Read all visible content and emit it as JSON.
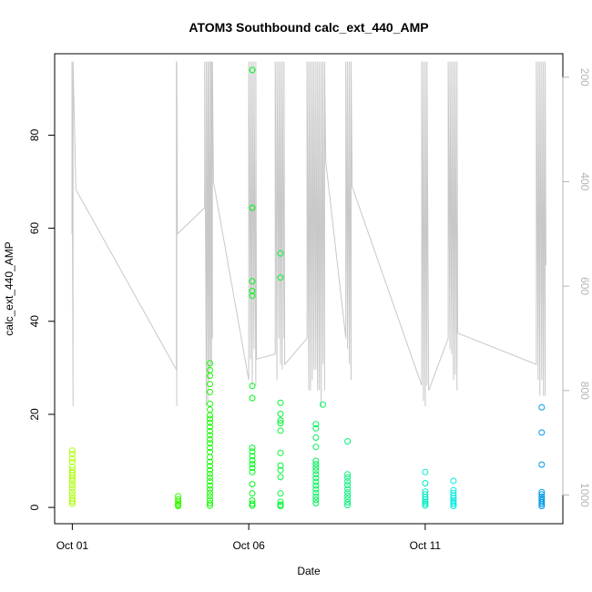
{
  "chart_data": {
    "type": "scatter",
    "title": "ATOM3 Southbound calc_ext_440_AMP",
    "xlabel": "Date",
    "ylabel": "calc_ext_440_AMP",
    "x_ticks": [
      {
        "day": 1,
        "label": "Oct 01"
      },
      {
        "day": 6,
        "label": "Oct 06"
      },
      {
        "day": 11,
        "label": "Oct 11"
      }
    ],
    "xlim": [
      0.5,
      14.9
    ],
    "ylim": [
      -3.5,
      97.5
    ],
    "y_ticks": [
      0,
      20,
      40,
      60,
      80
    ],
    "right_axis": {
      "label": "",
      "reversed": true,
      "ticks": [
        200,
        400,
        600,
        800,
        1000
      ],
      "range": [
        155,
        1055
      ],
      "color": "#b4b4b4"
    },
    "series": [
      {
        "marker": "open-circle",
        "points": [
          [
            1.0,
            12.2
          ],
          [
            1.0,
            11.5
          ],
          [
            1.0,
            10.5
          ],
          [
            1.0,
            9.8
          ],
          [
            1.0,
            8.7
          ],
          [
            1.0,
            8.0
          ],
          [
            1.0,
            7.4
          ],
          [
            1.0,
            6.9
          ],
          [
            1.0,
            6.2
          ],
          [
            1.0,
            5.6
          ],
          [
            1.0,
            4.8
          ],
          [
            1.0,
            4.1
          ],
          [
            1.0,
            3.3
          ],
          [
            1.0,
            2.6
          ],
          [
            1.0,
            1.9
          ],
          [
            1.0,
            1.3
          ],
          [
            1.0,
            0.8
          ],
          [
            4.0,
            2.4
          ],
          [
            4.0,
            1.7
          ],
          [
            4.0,
            1.2
          ],
          [
            4.0,
            0.8
          ],
          [
            4.0,
            0.5
          ],
          [
            4.0,
            0.3
          ],
          [
            4.9,
            31.0
          ],
          [
            4.9,
            29.5
          ],
          [
            4.9,
            28.3
          ],
          [
            4.9,
            26.5
          ],
          [
            4.9,
            24.8
          ],
          [
            4.9,
            22.3
          ],
          [
            4.9,
            21.0
          ],
          [
            4.9,
            19.8
          ],
          [
            4.9,
            19.0
          ],
          [
            4.9,
            18.2
          ],
          [
            4.9,
            17.3
          ],
          [
            4.9,
            16.4
          ],
          [
            4.9,
            15.5
          ],
          [
            4.9,
            14.6
          ],
          [
            4.9,
            13.8
          ],
          [
            4.9,
            12.8
          ],
          [
            4.9,
            11.9
          ],
          [
            4.9,
            10.8
          ],
          [
            4.9,
            9.8
          ],
          [
            4.9,
            8.9
          ],
          [
            4.9,
            8.0
          ],
          [
            4.9,
            7.2
          ],
          [
            4.9,
            6.4
          ],
          [
            4.9,
            5.6
          ],
          [
            4.9,
            4.7
          ],
          [
            4.9,
            3.9
          ],
          [
            4.9,
            3.1
          ],
          [
            4.9,
            2.4
          ],
          [
            4.9,
            1.6
          ],
          [
            4.9,
            0.9
          ],
          [
            4.9,
            0.4
          ],
          [
            6.1,
            94.0
          ],
          [
            6.1,
            64.4
          ],
          [
            6.1,
            48.6
          ],
          [
            6.1,
            46.5
          ],
          [
            6.1,
            45.5
          ],
          [
            6.1,
            26.1
          ],
          [
            6.1,
            23.5
          ],
          [
            6.1,
            12.8
          ],
          [
            6.1,
            12.0
          ],
          [
            6.1,
            11.0
          ],
          [
            6.1,
            10.1
          ],
          [
            6.1,
            9.3
          ],
          [
            6.1,
            8.5
          ],
          [
            6.1,
            7.6
          ],
          [
            6.1,
            5.0
          ],
          [
            6.1,
            3.0
          ],
          [
            6.1,
            1.5
          ],
          [
            6.1,
            0.8
          ],
          [
            6.1,
            0.4
          ],
          [
            6.9,
            54.6
          ],
          [
            6.9,
            49.4
          ],
          [
            6.9,
            22.5
          ],
          [
            6.9,
            20.1
          ],
          [
            6.9,
            18.7
          ],
          [
            6.9,
            18.1
          ],
          [
            6.9,
            16.5
          ],
          [
            6.9,
            11.7
          ],
          [
            6.9,
            9.0
          ],
          [
            6.9,
            8.0
          ],
          [
            6.9,
            6.5
          ],
          [
            6.9,
            3.0
          ],
          [
            6.9,
            1.2
          ],
          [
            6.9,
            0.6
          ],
          [
            6.9,
            0.3
          ],
          [
            7.9,
            17.9
          ],
          [
            7.9,
            17.0
          ],
          [
            7.9,
            15.0
          ],
          [
            7.9,
            13.0
          ],
          [
            7.9,
            10.0
          ],
          [
            7.9,
            9.3
          ],
          [
            7.9,
            8.6
          ],
          [
            7.9,
            7.9
          ],
          [
            7.9,
            7.1
          ],
          [
            7.9,
            6.3
          ],
          [
            7.9,
            5.5
          ],
          [
            7.9,
            4.7
          ],
          [
            7.9,
            3.9
          ],
          [
            7.9,
            3.1
          ],
          [
            7.9,
            2.3
          ],
          [
            7.9,
            1.6
          ],
          [
            7.9,
            0.9
          ],
          [
            8.1,
            22.1
          ],
          [
            8.8,
            14.2
          ],
          [
            8.8,
            7.1
          ],
          [
            8.8,
            6.4
          ],
          [
            8.8,
            5.6
          ],
          [
            8.8,
            4.8
          ],
          [
            8.8,
            4.0
          ],
          [
            8.8,
            3.2
          ],
          [
            8.8,
            2.5
          ],
          [
            8.8,
            1.8
          ],
          [
            8.8,
            1.1
          ],
          [
            8.8,
            0.5
          ],
          [
            11.0,
            7.6
          ],
          [
            11.0,
            5.2
          ],
          [
            11.0,
            3.4
          ],
          [
            11.0,
            2.8
          ],
          [
            11.0,
            2.2
          ],
          [
            11.0,
            1.7
          ],
          [
            11.0,
            1.2
          ],
          [
            11.0,
            0.8
          ],
          [
            11.0,
            0.4
          ],
          [
            11.8,
            5.7
          ],
          [
            11.8,
            3.7
          ],
          [
            11.8,
            3.1
          ],
          [
            11.8,
            2.5
          ],
          [
            11.8,
            2.0
          ],
          [
            11.8,
            1.5
          ],
          [
            11.8,
            1.1
          ],
          [
            11.8,
            0.7
          ],
          [
            11.8,
            0.3
          ],
          [
            14.3,
            21.5
          ],
          [
            14.3,
            16.1
          ],
          [
            14.3,
            9.2
          ],
          [
            14.3,
            3.3
          ],
          [
            14.3,
            2.8
          ],
          [
            14.3,
            2.3
          ],
          [
            14.3,
            1.9
          ],
          [
            14.3,
            1.5
          ],
          [
            14.3,
            1.1
          ],
          [
            14.3,
            0.7
          ],
          [
            14.3,
            0.3
          ]
        ]
      }
    ],
    "depth_trace": {
      "color": "#c8c8c8",
      "points": [
        [
          0.99,
          500
        ],
        [
          0.99,
          170
        ],
        [
          1.02,
          830
        ],
        [
          1.02,
          170
        ],
        [
          1.1,
          415
        ],
        [
          3.95,
          760
        ],
        [
          3.95,
          170
        ],
        [
          3.96,
          830
        ],
        [
          3.96,
          170
        ],
        [
          3.98,
          500
        ],
        [
          4.75,
          450
        ],
        [
          4.75,
          170
        ],
        [
          4.8,
          830
        ],
        [
          4.8,
          170
        ],
        [
          4.84,
          820
        ],
        [
          4.84,
          170
        ],
        [
          4.88,
          780
        ],
        [
          4.88,
          170
        ],
        [
          4.92,
          760
        ],
        [
          4.92,
          170
        ],
        [
          4.94,
          750
        ],
        [
          4.94,
          170
        ],
        [
          4.97,
          700
        ],
        [
          4.97,
          170
        ],
        [
          5.0,
          400
        ],
        [
          6.0,
          780
        ],
        [
          6.0,
          170
        ],
        [
          6.05,
          740
        ],
        [
          6.05,
          170
        ],
        [
          6.1,
          790
        ],
        [
          6.1,
          170
        ],
        [
          6.15,
          720
        ],
        [
          6.15,
          170
        ],
        [
          6.2,
          790
        ],
        [
          6.2,
          170
        ],
        [
          6.22,
          740
        ],
        [
          6.75,
          730
        ],
        [
          6.75,
          170
        ],
        [
          6.8,
          780
        ],
        [
          6.8,
          170
        ],
        [
          6.85,
          700
        ],
        [
          6.85,
          170
        ],
        [
          6.9,
          750
        ],
        [
          6.9,
          170
        ],
        [
          6.95,
          760
        ],
        [
          6.95,
          170
        ],
        [
          7.0,
          700
        ],
        [
          7.0,
          170
        ],
        [
          7.02,
          750
        ],
        [
          7.65,
          700
        ],
        [
          7.65,
          170
        ],
        [
          7.7,
          800
        ],
        [
          7.7,
          170
        ],
        [
          7.75,
          800
        ],
        [
          7.75,
          170
        ],
        [
          7.8,
          780
        ],
        [
          7.8,
          170
        ],
        [
          7.85,
          760
        ],
        [
          7.85,
          170
        ],
        [
          7.9,
          760
        ],
        [
          7.9,
          170
        ],
        [
          7.95,
          800
        ],
        [
          7.95,
          170
        ],
        [
          8.0,
          800
        ],
        [
          8.0,
          170
        ],
        [
          8.05,
          830
        ],
        [
          8.05,
          170
        ],
        [
          8.1,
          750
        ],
        [
          8.1,
          170
        ],
        [
          8.15,
          800
        ],
        [
          8.15,
          170
        ],
        [
          8.18,
          360
        ],
        [
          8.75,
          700
        ],
        [
          8.75,
          170
        ],
        [
          8.8,
          720
        ],
        [
          8.8,
          170
        ],
        [
          8.85,
          750
        ],
        [
          8.85,
          170
        ],
        [
          8.9,
          780
        ],
        [
          8.9,
          170
        ],
        [
          8.93,
          410
        ],
        [
          10.9,
          790
        ],
        [
          10.9,
          170
        ],
        [
          10.95,
          820
        ],
        [
          10.95,
          170
        ],
        [
          11.0,
          830
        ],
        [
          11.0,
          170
        ],
        [
          11.05,
          790
        ],
        [
          11.05,
          170
        ],
        [
          11.1,
          800
        ],
        [
          11.65,
          700
        ],
        [
          11.65,
          170
        ],
        [
          11.7,
          720
        ],
        [
          11.7,
          170
        ],
        [
          11.75,
          730
        ],
        [
          11.75,
          170
        ],
        [
          11.8,
          780
        ],
        [
          11.8,
          170
        ],
        [
          11.85,
          770
        ],
        [
          11.85,
          170
        ],
        [
          11.9,
          800
        ],
        [
          11.9,
          170
        ],
        [
          11.92,
          690
        ],
        [
          14.15,
          750
        ],
        [
          14.15,
          170
        ],
        [
          14.2,
          780
        ],
        [
          14.2,
          170
        ],
        [
          14.25,
          810
        ],
        [
          14.25,
          170
        ],
        [
          14.3,
          780
        ],
        [
          14.3,
          170
        ],
        [
          14.35,
          810
        ],
        [
          14.35,
          170
        ],
        [
          14.4,
          810
        ],
        [
          14.4,
          170
        ],
        [
          14.42,
          560
        ]
      ]
    }
  }
}
